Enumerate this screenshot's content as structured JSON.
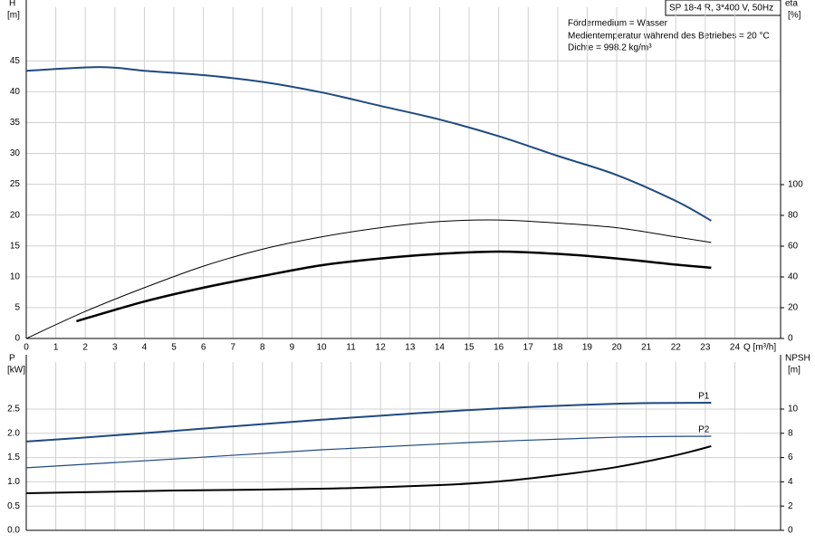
{
  "chart_data": [
    {
      "type": "line",
      "title": "SP 18-4 R, 3*400 V, 50Hz",
      "annotations": [
        "Fördermedium = Wasser",
        "Medientemperatur während des Betriebes = 20 °C",
        "Dichte = 998.2 kg/m³"
      ],
      "ylabel": "H",
      "yunit": "[m]",
      "y2label": "eta",
      "y2unit": "[%]",
      "xlabel": "Q [m³/h]",
      "xlim": [
        0,
        25.55
      ],
      "xticks": [
        0,
        1,
        2,
        3,
        4,
        5,
        6,
        7,
        8,
        9,
        10,
        11,
        12,
        13,
        14,
        15,
        16,
        17,
        18,
        19,
        20,
        21,
        22,
        23,
        24
      ],
      "ylim": [
        0,
        53.7
      ],
      "yticks": [
        0,
        5,
        10,
        15,
        20,
        25,
        30,
        35,
        40,
        45
      ],
      "y2lim": [
        0,
        215.3
      ],
      "y2ticks": [
        0,
        20,
        40,
        60,
        80,
        100
      ],
      "grid": true,
      "series": [
        {
          "color": "#1f4a80",
          "width": 2,
          "x": [
            0,
            2.5,
            4,
            6,
            8,
            10,
            12,
            14,
            16,
            18,
            20,
            22,
            23.2
          ],
          "values": [
            43.4,
            44.0,
            43.4,
            42.7,
            41.6,
            39.9,
            37.7,
            35.5,
            32.8,
            29.6,
            26.5,
            22.3,
            19.1
          ]
        },
        {
          "color": "#000000",
          "width": 1,
          "axis": "y2",
          "x": [
            0,
            2,
            4,
            6,
            8,
            10,
            12,
            14,
            16,
            18,
            20,
            22,
            23.2
          ],
          "values": [
            0,
            17.6,
            33,
            47,
            58,
            66,
            72,
            76,
            77,
            75,
            72,
            66,
            62.4
          ]
        },
        {
          "color": "#000000",
          "width": 2.5,
          "axis": "y2",
          "x": [
            1.7,
            4,
            6,
            8,
            10,
            12,
            14,
            16,
            18,
            20,
            22,
            23.2
          ],
          "values": [
            11.2,
            24,
            33,
            40.6,
            47.6,
            52,
            55,
            56.5,
            55,
            52,
            48,
            46
          ]
        }
      ]
    },
    {
      "type": "line",
      "ylabel": "P",
      "yunit": "[kW]",
      "y2label": "NPSH",
      "y2unit": "[m]",
      "xlim": [
        0,
        25.55
      ],
      "ylim": [
        0,
        3.47
      ],
      "yticks": [
        {
          "value": 0,
          "label": "0.0"
        },
        0.5,
        {
          "value": 1,
          "label": "1.0"
        },
        1.5,
        {
          "value": 2,
          "label": "2.0"
        },
        2.5
      ],
      "y2lim": [
        0,
        13.88
      ],
      "y2ticks": [
        0,
        2,
        4,
        6,
        8,
        10
      ],
      "grid": true,
      "series": [
        {
          "name": "P1",
          "color": "#1f4a80",
          "width": 2,
          "x": [
            0,
            1.7,
            5,
            10,
            15,
            20,
            23.2
          ],
          "values": [
            1.83,
            1.9,
            2.05,
            2.28,
            2.48,
            2.61,
            2.63
          ]
        },
        {
          "name": "P2",
          "color": "#1f4a80",
          "width": 1.2,
          "x": [
            0,
            5,
            10,
            15,
            20,
            23.2
          ],
          "values": [
            1.29,
            1.47,
            1.66,
            1.81,
            1.92,
            1.94
          ]
        },
        {
          "color": "#000000",
          "width": 2,
          "axis": "y2",
          "x": [
            0,
            1.7,
            5,
            10,
            14,
            16,
            18,
            20,
            22,
            23.2
          ],
          "values": [
            3.06,
            3.13,
            3.28,
            3.43,
            3.73,
            4.03,
            4.55,
            5.22,
            6.19,
            6.94
          ]
        }
      ]
    }
  ]
}
